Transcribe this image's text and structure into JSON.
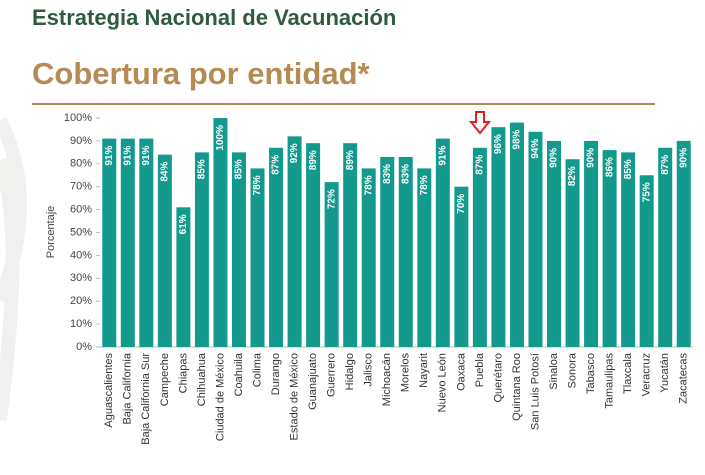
{
  "chart_data": {
    "type": "bar",
    "title": "Estrategia Nacional de Vacunación",
    "subtitle": "Cobertura por entidad*",
    "y_label": "Porcentaje",
    "categories": [
      "Aguascalientes",
      "Baja California",
      "Baja California Sur",
      "Campeche",
      "Chiapas",
      "Chihuahua",
      "Ciudad de México",
      "Coahuila",
      "Colima",
      "Durango",
      "Estado de México",
      "Guanajuato",
      "Guerrero",
      "Hidalgo",
      "Jalisco",
      "Michoacán",
      "Morelos",
      "Nayarit",
      "Nuevo León",
      "Oaxaca",
      "Puebla",
      "Querétaro",
      "Quintana Roo",
      "San Luis Potosí",
      "Sinaloa",
      "Sonora",
      "Tabasco",
      "Tamaulipas",
      "Tlaxcala",
      "Veracruz",
      "Yucatán",
      "Zacatecas"
    ],
    "values": [
      91,
      91,
      91,
      84,
      61,
      85,
      100,
      85,
      78,
      87,
      92,
      89,
      72,
      89,
      78,
      83,
      83,
      78,
      91,
      70,
      87,
      96,
      98,
      94,
      90,
      82,
      90,
      86,
      85,
      75,
      87,
      90
    ],
    "value_labels": [
      "91%",
      "91%",
      "91%",
      "84%",
      "61%",
      "85%",
      "100%",
      "85%",
      "78%",
      "87%",
      "92%",
      "89%",
      "72%",
      "89%",
      "78%",
      "83%",
      "83%",
      "78%",
      "91%",
      "70%",
      "87%",
      "96%",
      "98%",
      "94%",
      "90%",
      "82%",
      "90%",
      "86%",
      "85%",
      "75%",
      "87%",
      "90%"
    ],
    "color": "#149a8c",
    "ylim": [
      0,
      100
    ],
    "yticks": [
      {
        "value": 0,
        "label": "0%"
      },
      {
        "value": 10,
        "label": "10%"
      },
      {
        "value": 20,
        "label": "20%"
      },
      {
        "value": 30,
        "label": "30%"
      },
      {
        "value": 40,
        "label": "40%"
      },
      {
        "value": 50,
        "label": "50%"
      },
      {
        "value": 60,
        "label": "60%"
      },
      {
        "value": 70,
        "label": "70%"
      },
      {
        "value": 80,
        "label": "80%"
      },
      {
        "value": 90,
        "label": "90%"
      },
      {
        "value": 100,
        "label": "100%"
      }
    ]
  }
}
